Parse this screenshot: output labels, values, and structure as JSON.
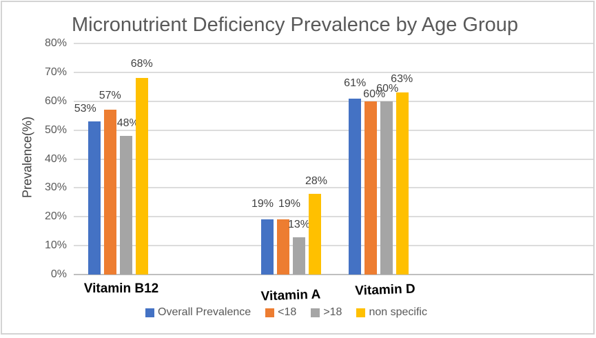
{
  "chart_data": {
    "type": "bar",
    "title": "Micronutrient Deficiency Prevalence by Age Group",
    "ylabel": "Prevalence(%)",
    "xlabel": "",
    "categories": [
      "Vitamin B12",
      "Vitamin A",
      "Vitamin D"
    ],
    "series": [
      {
        "name": "Overall Prevalence",
        "color": "#4472C4",
        "values": [
          53,
          19,
          61
        ],
        "labels": [
          "53%",
          "19%",
          "61%"
        ]
      },
      {
        "name": "<18",
        "color": "#ED7D31",
        "values": [
          57,
          19,
          60
        ],
        "labels": [
          "57%",
          "19%",
          "60%"
        ]
      },
      {
        "name": ">18",
        "color": "#A5A5A5",
        "values": [
          48,
          13,
          60
        ],
        "labels": [
          "48%",
          "13%",
          "60%"
        ]
      },
      {
        "name": "non specific",
        "color": "#FFC000",
        "values": [
          68,
          28,
          63
        ],
        "labels": [
          "68%",
          "28%",
          "63%"
        ]
      }
    ],
    "ylim": [
      0,
      80
    ],
    "ytick_step": 10,
    "ytick_labels": [
      "0%",
      "10%",
      "20%",
      "30%",
      "40%",
      "50%",
      "60%",
      "70%",
      "80%"
    ],
    "grid": true,
    "legend_position": "bottom",
    "colors": {
      "grid": "#DCDCDC",
      "axis_line": "#BFBFBF",
      "title_text": "#595959",
      "tick_text": "#595959",
      "data_label_text": "#404040",
      "category_text": "#000000",
      "legend_text": "#595959",
      "background": "#FFFFFF",
      "frame_border": "#D3D3D3"
    }
  }
}
